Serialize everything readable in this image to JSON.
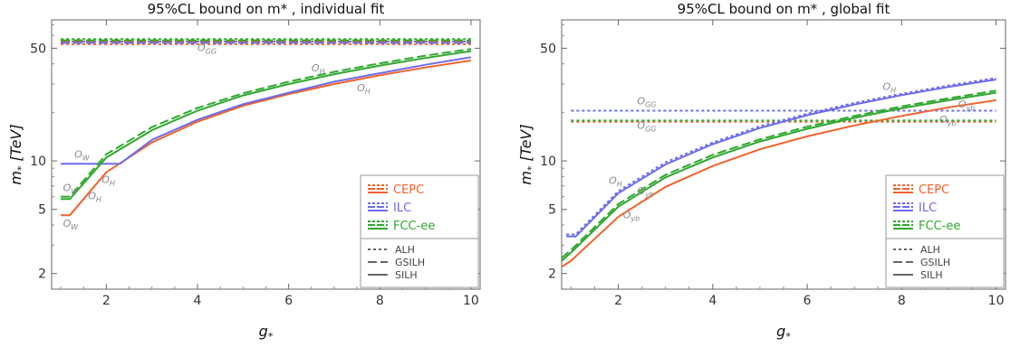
{
  "colors": {
    "CEPC": "#f0622b",
    "ILC": "#6c6ceb",
    "FCC-ee": "#2ea82e",
    "label_gray": "#888888"
  },
  "chart_data": [
    {
      "type": "line",
      "title": "95%CL bound on m* , individual fit",
      "xlabel": "g*",
      "ylabel": "m* [TeV]",
      "xlim": [
        0.8,
        10.2
      ],
      "ylim": [
        1.6,
        75
      ],
      "yscale": "log",
      "xticks": [
        2,
        4,
        6,
        8,
        10
      ],
      "yticks": [
        2,
        5,
        10,
        50
      ],
      "grid": false,
      "legend": "bottom-right",
      "legend_entries": [
        "CEPC",
        "ILC",
        "FCC-ee"
      ],
      "style_legend": [
        "ALH",
        "GSILH",
        "SILH"
      ],
      "series": [
        {
          "name": "CEPC",
          "style": "ALH",
          "x": [
            1,
            10
          ],
          "y": [
            53,
            53
          ]
        },
        {
          "name": "ILC",
          "style": "ALH",
          "x": [
            1,
            10
          ],
          "y": [
            55,
            55
          ]
        },
        {
          "name": "FCC-ee",
          "style": "ALH",
          "x": [
            1,
            10
          ],
          "y": [
            57,
            57
          ]
        },
        {
          "name": "CEPC",
          "style": "GSILH",
          "x": [
            1,
            10
          ],
          "y": [
            55,
            55
          ]
        },
        {
          "name": "ILC",
          "style": "GSILH",
          "x": [
            1,
            10
          ],
          "y": [
            54,
            54
          ]
        },
        {
          "name": "FCC-ee",
          "style": "GSILH",
          "x": [
            1,
            10
          ],
          "y": [
            56,
            56
          ]
        },
        {
          "name": "CEPC",
          "style": "SILH",
          "x": [
            1,
            1.2,
            2,
            3,
            4,
            5,
            6,
            7,
            8,
            9,
            10
          ],
          "y": [
            4.6,
            4.6,
            8.5,
            13,
            17.5,
            22,
            26,
            30,
            34,
            38,
            42
          ]
        },
        {
          "name": "ILC",
          "style": "SILH",
          "x": [
            1,
            2,
            2.3,
            3,
            4,
            5,
            6,
            7,
            8,
            9,
            10
          ],
          "y": [
            9.6,
            9.6,
            9.6,
            13.5,
            18,
            22.5,
            26.5,
            31,
            35,
            39.5,
            44
          ]
        },
        {
          "name": "FCC-ee",
          "style": "SILH",
          "x": [
            1,
            1.2,
            2,
            3,
            4,
            5,
            6,
            7,
            8,
            9,
            10
          ],
          "y": [
            5.8,
            5.8,
            10.5,
            15.5,
            20.5,
            25.5,
            30,
            34.5,
            39,
            43.5,
            48
          ]
        },
        {
          "name": "FCC-ee",
          "style": "GSILH",
          "x": [
            1,
            1.2,
            2,
            3,
            4,
            5,
            6,
            7,
            8,
            9,
            10
          ],
          "y": [
            6,
            6,
            11,
            16.2,
            21.3,
            26.3,
            31,
            35.7,
            40.3,
            45,
            49.5
          ]
        }
      ],
      "annotations": [
        {
          "text": "O_GG",
          "x": 4.0,
          "y": 48
        },
        {
          "text": "O_H",
          "x": 6.5,
          "y": 36
        },
        {
          "text": "O_H",
          "x": 7.5,
          "y": 27
        },
        {
          "text": "O_W",
          "x": 1.3,
          "y": 10.5
        },
        {
          "text": "O_W",
          "x": 1.05,
          "y": 6.5
        },
        {
          "text": "O_H",
          "x": 1.9,
          "y": 7.3
        },
        {
          "text": "O_H",
          "x": 1.6,
          "y": 5.8
        },
        {
          "text": "O_W",
          "x": 1.05,
          "y": 3.9
        }
      ]
    },
    {
      "type": "line",
      "title": "95%CL bound on m* , global fit",
      "xlabel": "g*",
      "ylabel": "m* [TeV]",
      "xlim": [
        0.8,
        10.2
      ],
      "ylim": [
        1.6,
        75
      ],
      "yscale": "log",
      "xticks": [
        2,
        4,
        6,
        8,
        10
      ],
      "yticks": [
        2,
        5,
        10,
        50
      ],
      "grid": false,
      "legend": "bottom-right",
      "legend_entries": [
        "CEPC",
        "ILC",
        "FCC-ee"
      ],
      "style_legend": [
        "ALH",
        "GSILH",
        "SILH"
      ],
      "series": [
        {
          "name": "ILC",
          "style": "ALH",
          "x": [
            1,
            10
          ],
          "y": [
            20.5,
            20.5
          ]
        },
        {
          "name": "CEPC",
          "style": "ALH",
          "x": [
            1,
            10
          ],
          "y": [
            17.5,
            17.5
          ]
        },
        {
          "name": "FCC-ee",
          "style": "ALH",
          "x": [
            1,
            10
          ],
          "y": [
            17.8,
            17.8
          ]
        },
        {
          "name": "CEPC",
          "style": "SILH",
          "x": [
            0.8,
            1,
            2,
            3,
            4,
            5,
            6,
            7,
            8,
            9,
            10
          ],
          "y": [
            2.2,
            2.4,
            4.5,
            6.9,
            9.3,
            11.8,
            14.2,
            16.6,
            19,
            21.5,
            23.8
          ]
        },
        {
          "name": "FCC-ee",
          "style": "SILH",
          "x": [
            0.8,
            1,
            2,
            3,
            4,
            5,
            6,
            7,
            8,
            9,
            10
          ],
          "y": [
            2.4,
            2.7,
            5.2,
            7.9,
            10.5,
            13.2,
            15.8,
            18.5,
            21.2,
            23.8,
            26.5
          ]
        },
        {
          "name": "FCC-ee",
          "style": "GSILH",
          "x": [
            0.8,
            1,
            2,
            3,
            4,
            5,
            6,
            7,
            8,
            9,
            10
          ],
          "y": [
            2.5,
            2.8,
            5.4,
            8.2,
            10.9,
            13.6,
            16.3,
            19,
            21.8,
            24.5,
            27.3
          ]
        },
        {
          "name": "ILC",
          "style": "SILH",
          "x": [
            0.9,
            1.1,
            2,
            3,
            4,
            5,
            6,
            7,
            8,
            9,
            10
          ],
          "y": [
            3.4,
            3.4,
            6.3,
            9.5,
            12.7,
            16,
            19.2,
            22.4,
            25.6,
            28.8,
            32
          ]
        },
        {
          "name": "ILC",
          "style": "ALH",
          "x": [
            0.9,
            1.1,
            2,
            3,
            4,
            5,
            6,
            7,
            8,
            9,
            10
          ],
          "y": [
            3.5,
            3.5,
            6.5,
            9.8,
            13,
            16.4,
            19.6,
            22.9,
            26.1,
            29.4,
            32.7
          ]
        }
      ],
      "annotations": [
        {
          "text": "O_GG",
          "x": 2.4,
          "y": 22.5
        },
        {
          "text": "O_GG",
          "x": 2.4,
          "y": 15.8
        },
        {
          "text": "O_H",
          "x": 7.6,
          "y": 27.5
        },
        {
          "text": "O_yb",
          "x": 9.2,
          "y": 21.5
        },
        {
          "text": "O_yb",
          "x": 8.8,
          "y": 17.2
        },
        {
          "text": "O_H",
          "x": 1.8,
          "y": 7.2
        },
        {
          "text": "O_yb",
          "x": 2.4,
          "y": 6.2
        },
        {
          "text": "O_yb",
          "x": 2.1,
          "y": 4.4
        }
      ]
    }
  ]
}
